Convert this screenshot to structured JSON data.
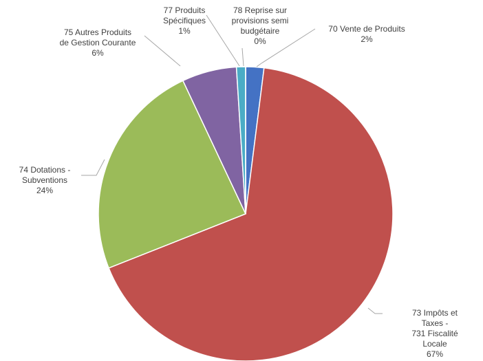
{
  "chart_data": {
    "type": "pie",
    "categories": [
      "70    Vente de Produits",
      "73    Impôts et Taxes -\n731 Fiscalité Locale",
      "74    Dotations -\nSubventions",
      "75    Autres Produits\nde Gestion Courante",
      "77    Produits\nSpécifiques",
      "78    Reprise sur\nprovisions semi\nbudgétaire"
    ],
    "values": [
      2,
      67,
      24,
      6,
      1,
      0
    ],
    "value_labels": [
      "2%",
      "67%",
      "24%",
      "6%",
      "1%",
      "0%"
    ],
    "colors": [
      "#4472c4",
      "#c0504d",
      "#9bbb59",
      "#8064a2",
      "#4bacc6",
      "#f79646"
    ]
  }
}
